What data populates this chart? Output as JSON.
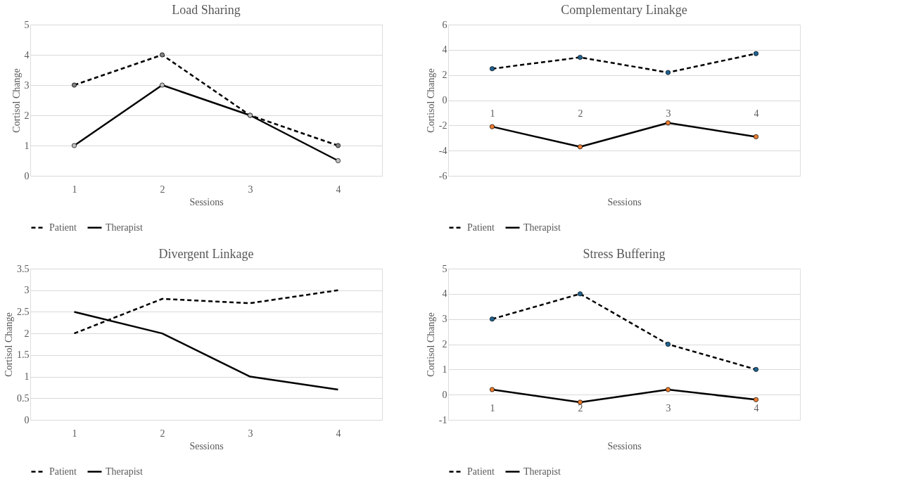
{
  "chart_data": [
    {
      "type": "line",
      "title": "Load Sharing",
      "xlabel": "Sessions",
      "ylabel": "Cortisol Change",
      "categories": [
        "1",
        "2",
        "3",
        "4"
      ],
      "ylim": [
        0,
        5
      ],
      "yticks": [
        0,
        1,
        2,
        3,
        4,
        5
      ],
      "grid": "y",
      "legend": "bottom",
      "marker": "circle",
      "series": [
        {
          "name": "Patient",
          "color": "#7f7f7f",
          "line_style": "dashed",
          "values": [
            3,
            4,
            2,
            1
          ]
        },
        {
          "name": "Therapist",
          "color": "#bfbfbf",
          "line_style": "solid",
          "values": [
            1,
            3,
            2,
            0.5
          ]
        }
      ]
    },
    {
      "type": "line",
      "title": "Complementary Linakge",
      "xlabel": "Sessions",
      "ylabel": "Cortisol Change",
      "categories": [
        "1",
        "2",
        "3",
        "4"
      ],
      "ylim": [
        -6,
        6
      ],
      "yticks": [
        -6,
        -4,
        -2,
        0,
        2,
        4,
        6
      ],
      "grid": "y",
      "legend": "bottom",
      "marker": "circle",
      "series": [
        {
          "name": "Patient",
          "color": "#1f6391",
          "line_style": "dashed",
          "values": [
            2.5,
            3.4,
            2.2,
            3.7
          ]
        },
        {
          "name": "Therapist",
          "color": "#ed7d31",
          "line_style": "solid",
          "values": [
            -2.1,
            -3.7,
            -1.8,
            -2.9
          ]
        }
      ]
    },
    {
      "type": "line",
      "title": "Divergent Linkage",
      "xlabel": "Sessions",
      "ylabel": "Cortisol Change",
      "categories": [
        "1",
        "2",
        "3",
        "4"
      ],
      "ylim": [
        0,
        3.5
      ],
      "yticks": [
        0,
        0.5,
        1,
        1.5,
        2,
        2.5,
        3,
        3.5
      ],
      "grid": "y",
      "legend": "bottom",
      "marker": "none",
      "series": [
        {
          "name": "Patient",
          "color": "#000000",
          "line_style": "dashed",
          "values": [
            2,
            2.8,
            2.7,
            3
          ]
        },
        {
          "name": "Therapist",
          "color": "#000000",
          "line_style": "solid",
          "values": [
            2.5,
            2,
            1,
            0.7
          ]
        }
      ]
    },
    {
      "type": "line",
      "title": "Stress Buffering",
      "xlabel": "Sessions",
      "ylabel": "Cortisol Change",
      "categories": [
        "1",
        "2",
        "3",
        "4"
      ],
      "ylim": [
        -1,
        5
      ],
      "yticks": [
        -1,
        0,
        1,
        2,
        3,
        4,
        5
      ],
      "grid": "y",
      "legend": "bottom",
      "marker": "circle",
      "series": [
        {
          "name": "Patient",
          "color": "#1f6391",
          "line_style": "dashed",
          "values": [
            3,
            4,
            2,
            1
          ]
        },
        {
          "name": "Therapist",
          "color": "#ed7d31",
          "line_style": "solid",
          "values": [
            0.2,
            -0.3,
            0.2,
            -0.2
          ]
        }
      ]
    }
  ]
}
